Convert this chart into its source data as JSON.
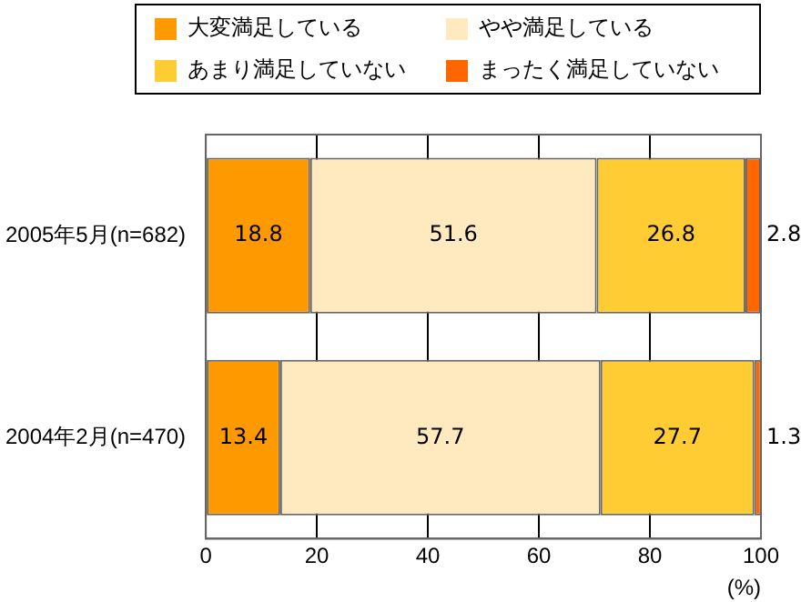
{
  "chart_data": {
    "type": "bar",
    "orientation": "horizontal",
    "stacked": true,
    "categories": [
      "2005年5月(n=682)",
      "2004年2月(n=470)"
    ],
    "series": [
      {
        "name": "大変満足している",
        "color": "#ff9900",
        "values": [
          18.8,
          13.4
        ]
      },
      {
        "name": "やや満足している",
        "color": "#ffe9bf",
        "values": [
          51.6,
          57.7
        ]
      },
      {
        "name": "あまり満足していない",
        "color": "#ffcc33",
        "values": [
          26.8,
          27.7
        ]
      },
      {
        "name": "まったく満足していない",
        "color": "#ff6600",
        "values": [
          2.8,
          1.3
        ]
      }
    ],
    "xlim": [
      0,
      100
    ],
    "xticks": [
      0,
      20,
      40,
      60,
      80,
      100
    ],
    "xlabel": "(%)",
    "grid": "x",
    "legend": "top",
    "data_labels": true
  }
}
